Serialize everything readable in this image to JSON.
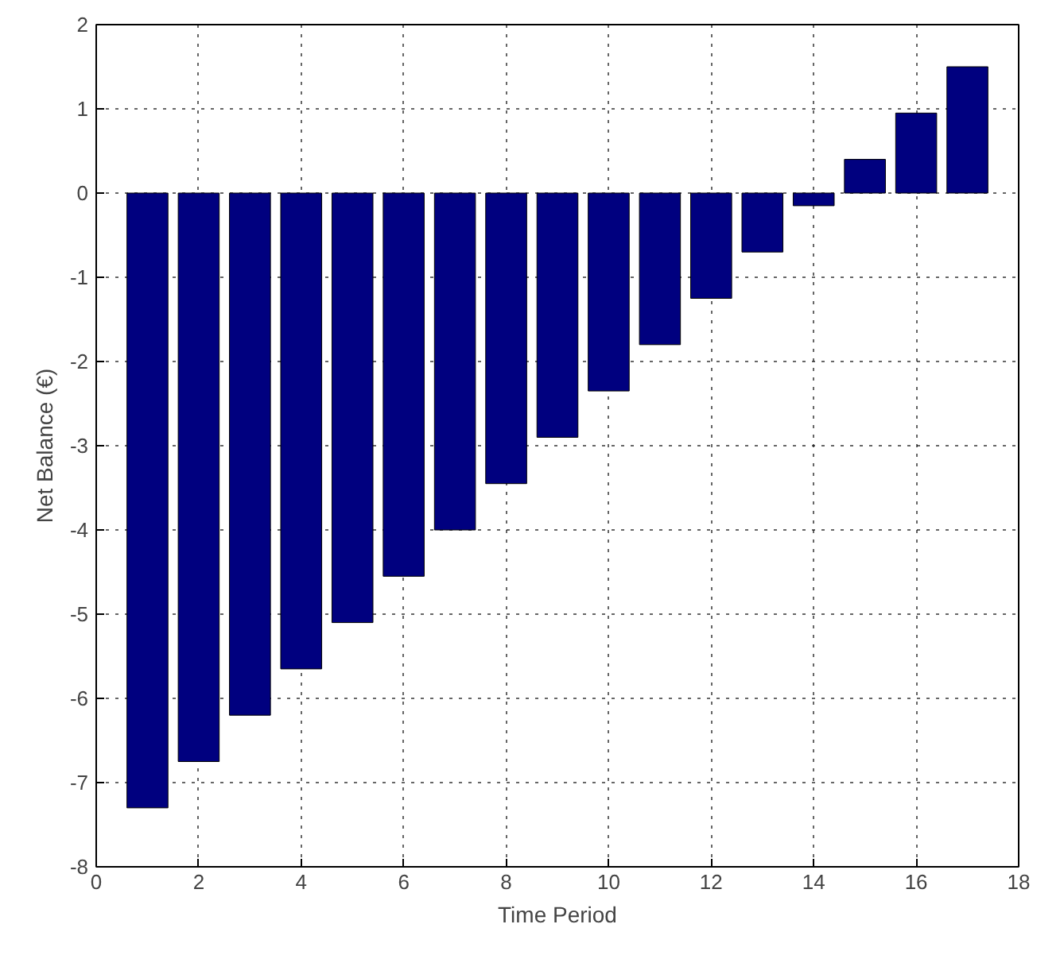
{
  "chart_data": {
    "type": "bar",
    "xlabel": "Time Period",
    "ylabel": "Net Balance (€)",
    "x": [
      1,
      2,
      3,
      4,
      5,
      6,
      7,
      8,
      9,
      10,
      11,
      12,
      13,
      14,
      15,
      16,
      17
    ],
    "values": [
      -7.3,
      -6.75,
      -6.2,
      -5.65,
      -5.1,
      -4.55,
      -4.0,
      -3.45,
      -2.9,
      -2.35,
      -1.8,
      -1.25,
      -0.7,
      -0.15,
      0.4,
      0.95,
      1.5
    ],
    "color": "#00007f",
    "xlim": [
      0,
      18
    ],
    "xticks": [
      0,
      2,
      4,
      6,
      8,
      10,
      12,
      14,
      16,
      18
    ],
    "ylim": [
      -8,
      2
    ],
    "yticks": [
      -8,
      -7,
      -6,
      -5,
      -4,
      -3,
      -2,
      -1,
      0,
      1,
      2
    ],
    "grid": true,
    "line_style": "dotted"
  }
}
